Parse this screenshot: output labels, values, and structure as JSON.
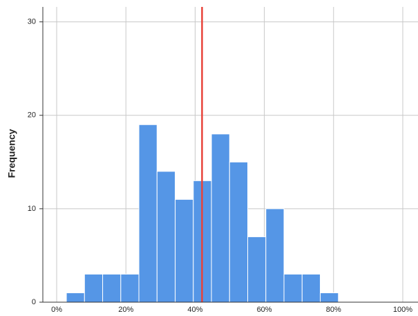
{
  "chart_data": {
    "type": "histogram",
    "y_label": "Frequency",
    "bins": [
      2.8,
      8.04,
      13.28,
      18.52,
      23.76,
      29.0,
      34.24,
      39.48,
      44.72,
      49.96,
      55.2,
      60.44,
      65.68,
      70.92,
      76.16,
      81.4
    ],
    "counts": [
      1,
      3,
      3,
      3,
      19,
      14,
      11,
      13,
      18,
      15,
      7,
      10,
      3,
      3,
      1
    ],
    "color": "#5596e6",
    "reference_line": {
      "value": 42,
      "color": "#e8433a"
    },
    "xlim": [
      -4,
      104.4
    ],
    "xticks": [
      {
        "value": 0,
        "label": "0%"
      },
      {
        "value": 20,
        "label": "20%"
      },
      {
        "value": 40,
        "label": "40%"
      },
      {
        "value": 60,
        "label": "60%"
      },
      {
        "value": 80,
        "label": "80%"
      },
      {
        "value": 100,
        "label": "100%"
      }
    ],
    "ylim": [
      0,
      31.6
    ],
    "yticks": [
      0,
      10,
      20,
      30
    ],
    "grid": true
  }
}
